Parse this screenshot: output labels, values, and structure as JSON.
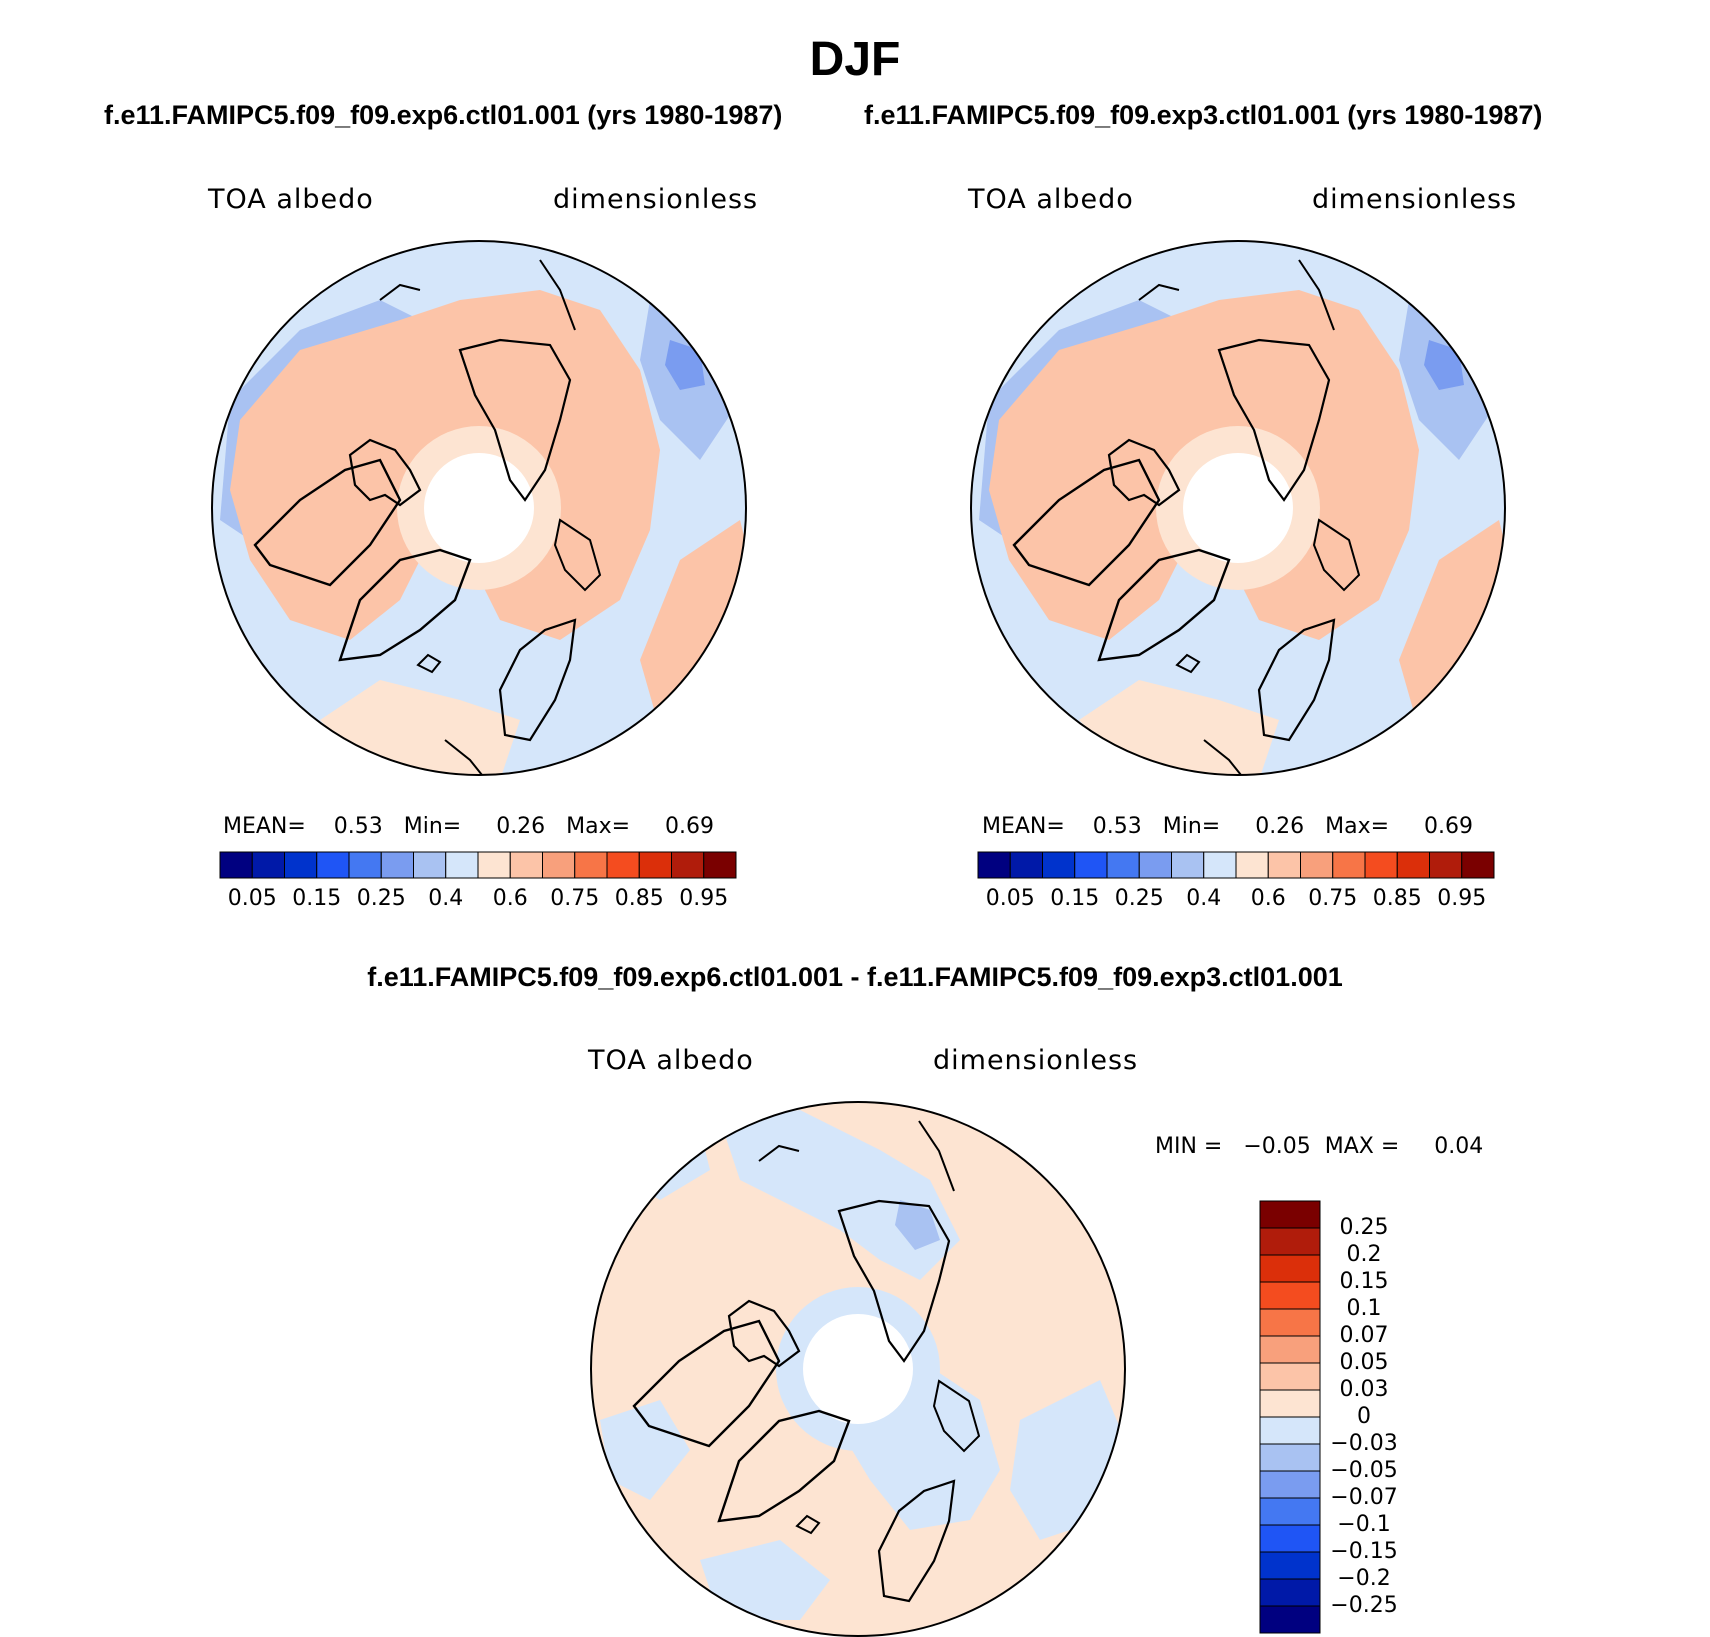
{
  "title": "DJF",
  "cases": [
    "f.e11.FAMIPC5.f09_f09.exp6.ctl01.001 (yrs 1980-1987)",
    "f.e11.FAMIPC5.f09_f09.exp3.ctl01.001 (yrs 1980-1987)"
  ],
  "diff_title": "f.e11.FAMIPC5.f09_f09.exp6.ctl01.001 - f.e11.FAMIPC5.f09_f09.exp3.ctl01.001",
  "panels": [
    {
      "variable": "TOA albedo",
      "units": "dimensionless",
      "stats": "MEAN=    0.53   Min=     0.26   Max=     0.69"
    },
    {
      "variable": "TOA albedo",
      "units": "dimensionless",
      "stats": "MEAN=    0.53   Min=     0.26   Max=     0.69"
    },
    {
      "variable": "TOA albedo",
      "units": "dimensionless",
      "stats": "MIN =   −0.05  MAX =     0.04"
    }
  ],
  "colorbar_main": {
    "colors": [
      "#000080",
      "#0019a8",
      "#0033cc",
      "#1f55f5",
      "#4478f2",
      "#7a9cf0",
      "#a9c2f2",
      "#d5e6fa",
      "#fde4d2",
      "#fcc4a8",
      "#f8a07c",
      "#f77547",
      "#f44c1f",
      "#db2f0a",
      "#b01c0b",
      "#7a0000"
    ],
    "labels": [
      "0.05",
      "0.15",
      "0.25",
      "0.4",
      "0.6",
      "0.75",
      "0.85",
      "0.95"
    ]
  },
  "colorbar_diff": {
    "colors_top_to_bottom": [
      "#7a0000",
      "#b01c0b",
      "#db2f0a",
      "#f44c1f",
      "#f77547",
      "#f8a07c",
      "#fcc4a8",
      "#fde4d2",
      "#d5e6fa",
      "#a9c2f2",
      "#7a9cf0",
      "#4478f2",
      "#1f55f5",
      "#0033cc",
      "#0019a8",
      "#000080"
    ],
    "labels": [
      "0.25",
      "0.2",
      "0.15",
      "0.1",
      "0.07",
      "0.05",
      "0.03",
      "0",
      "−0.03",
      "−0.05",
      "−0.07",
      "−0.1",
      "−0.15",
      "−0.2",
      "−0.25"
    ]
  },
  "map_colors": {
    "ocean_light_blue": "#d5e6fa",
    "blue2": "#a9c2f2",
    "blue3": "#7a9cf0",
    "peach": "#fde4d2",
    "salmon": "#fcc4a8",
    "orange": "#f8a07c"
  }
}
